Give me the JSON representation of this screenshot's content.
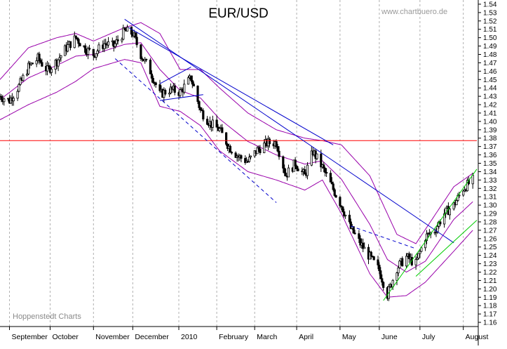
{
  "chart_data": {
    "type": "candlestick",
    "title": "EUR/USD",
    "watermark": "www.chartbuero.de",
    "credit": "Hoppenstedt Charts",
    "x_axis": {
      "start": "2009-08-25",
      "end": "2010-08-12",
      "month_labels": [
        {
          "label": "September",
          "date": "2009-09-01"
        },
        {
          "label": "October",
          "date": "2009-10-01"
        },
        {
          "label": "November",
          "date": "2009-11-02"
        },
        {
          "label": "December",
          "date": "2009-12-01"
        },
        {
          "label": "2010",
          "date": "2010-01-04"
        },
        {
          "label": "February",
          "date": "2010-02-01"
        },
        {
          "label": "March",
          "date": "2010-03-01"
        },
        {
          "label": "April",
          "date": "2010-04-01"
        },
        {
          "label": "May",
          "date": "2010-05-03"
        },
        {
          "label": "June",
          "date": "2010-06-01"
        },
        {
          "label": "July",
          "date": "2010-07-01"
        },
        {
          "label": "August",
          "date": "2010-08-02"
        }
      ]
    },
    "y_axis": {
      "min": 1.155,
      "max": 1.545,
      "ticks": [
        "1.16",
        "1.17",
        "1.18",
        "1.19",
        "1.20",
        "1.21",
        "1.22",
        "1.23",
        "1.24",
        "1.25",
        "1.26",
        "1.27",
        "1.28",
        "1.29",
        "1.30",
        "1.31",
        "1.32",
        "1.33",
        "1.34",
        "1.35",
        "1.36",
        "1.37",
        "1.38",
        "1.39",
        "1.40",
        "1.41",
        "1.42",
        "1.43",
        "1.44",
        "1.45",
        "1.46",
        "1.47",
        "1.48",
        "1.49",
        "1.50",
        "1.51",
        "1.52",
        "1.53",
        "1.54"
      ],
      "position": "right"
    },
    "grid": {
      "vertical": "dashed at month starts",
      "horizontal": false
    },
    "price_path": [
      [
        "2009-08-25",
        1.43
      ],
      [
        "2009-09-01",
        1.425
      ],
      [
        "2009-09-08",
        1.442
      ],
      [
        "2009-09-15",
        1.465
      ],
      [
        "2009-09-22",
        1.475
      ],
      [
        "2009-09-29",
        1.461
      ],
      [
        "2009-10-06",
        1.472
      ],
      [
        "2009-10-13",
        1.488
      ],
      [
        "2009-10-20",
        1.5
      ],
      [
        "2009-10-27",
        1.487
      ],
      [
        "2009-11-02",
        1.48
      ],
      [
        "2009-11-10",
        1.493
      ],
      [
        "2009-11-17",
        1.49
      ],
      [
        "2009-11-25",
        1.508
      ],
      [
        "2009-12-01",
        1.505
      ],
      [
        "2009-12-07",
        1.48
      ],
      [
        "2009-12-14",
        1.46
      ],
      [
        "2009-12-21",
        1.432
      ],
      [
        "2009-12-28",
        1.438
      ],
      [
        "2010-01-05",
        1.435
      ],
      [
        "2010-01-13",
        1.452
      ],
      [
        "2010-01-20",
        1.413
      ],
      [
        "2010-01-27",
        1.398
      ],
      [
        "2010-02-03",
        1.39
      ],
      [
        "2010-02-10",
        1.37
      ],
      [
        "2010-02-17",
        1.358
      ],
      [
        "2010-02-24",
        1.352
      ],
      [
        "2010-03-03",
        1.366
      ],
      [
        "2010-03-10",
        1.374
      ],
      [
        "2010-03-17",
        1.375
      ],
      [
        "2010-03-24",
        1.336
      ],
      [
        "2010-03-31",
        1.35
      ],
      [
        "2010-04-07",
        1.335
      ],
      [
        "2010-04-13",
        1.364
      ],
      [
        "2010-04-20",
        1.345
      ],
      [
        "2010-04-27",
        1.322
      ],
      [
        "2010-05-04",
        1.3
      ],
      [
        "2010-05-11",
        1.272
      ],
      [
        "2010-05-18",
        1.254
      ],
      [
        "2010-05-25",
        1.238
      ],
      [
        "2010-06-01",
        1.222
      ],
      [
        "2010-06-07",
        1.193
      ],
      [
        "2010-06-14",
        1.225
      ],
      [
        "2010-06-21",
        1.238
      ],
      [
        "2010-06-28",
        1.23
      ],
      [
        "2010-07-05",
        1.262
      ],
      [
        "2010-07-12",
        1.27
      ],
      [
        "2010-07-19",
        1.29
      ],
      [
        "2010-07-26",
        1.3
      ],
      [
        "2010-08-02",
        1.32
      ],
      [
        "2010-08-09",
        1.33
      ]
    ],
    "upper_band": [
      [
        "2009-08-25",
        1.45
      ],
      [
        "2009-09-15",
        1.488
      ],
      [
        "2009-10-06",
        1.5
      ],
      [
        "2009-10-20",
        1.505
      ],
      [
        "2009-11-02",
        1.496
      ],
      [
        "2009-11-25",
        1.512
      ],
      [
        "2009-12-07",
        1.518
      ],
      [
        "2009-12-21",
        1.505
      ],
      [
        "2010-01-05",
        1.462
      ],
      [
        "2010-01-20",
        1.462
      ],
      [
        "2010-02-03",
        1.44
      ],
      [
        "2010-02-24",
        1.41
      ],
      [
        "2010-03-17",
        1.39
      ],
      [
        "2010-04-07",
        1.38
      ],
      [
        "2010-04-20",
        1.377
      ],
      [
        "2010-05-04",
        1.372
      ],
      [
        "2010-05-25",
        1.335
      ],
      [
        "2010-06-14",
        1.265
      ],
      [
        "2010-06-28",
        1.254
      ],
      [
        "2010-07-12",
        1.288
      ],
      [
        "2010-07-26",
        1.322
      ],
      [
        "2010-08-09",
        1.338
      ]
    ],
    "lower_band": [
      [
        "2009-08-25",
        1.402
      ],
      [
        "2009-09-15",
        1.42
      ],
      [
        "2009-10-06",
        1.435
      ],
      [
        "2009-10-20",
        1.448
      ],
      [
        "2009-11-02",
        1.463
      ],
      [
        "2009-11-25",
        1.474
      ],
      [
        "2009-12-07",
        1.47
      ],
      [
        "2009-12-21",
        1.418
      ],
      [
        "2010-01-05",
        1.412
      ],
      [
        "2010-01-20",
        1.395
      ],
      [
        "2010-02-03",
        1.365
      ],
      [
        "2010-02-24",
        1.34
      ],
      [
        "2010-03-17",
        1.33
      ],
      [
        "2010-04-07",
        1.318
      ],
      [
        "2010-04-20",
        1.33
      ],
      [
        "2010-05-04",
        1.29
      ],
      [
        "2010-05-25",
        1.218
      ],
      [
        "2010-06-07",
        1.19
      ],
      [
        "2010-06-21",
        1.192
      ],
      [
        "2010-07-05",
        1.208
      ],
      [
        "2010-07-26",
        1.245
      ],
      [
        "2010-08-09",
        1.27
      ]
    ],
    "middle_band": [
      [
        "2009-08-25",
        1.426
      ],
      [
        "2009-09-15",
        1.452
      ],
      [
        "2009-10-06",
        1.467
      ],
      [
        "2009-10-20",
        1.478
      ],
      [
        "2009-11-02",
        1.48
      ],
      [
        "2009-11-25",
        1.492
      ],
      [
        "2009-12-07",
        1.494
      ],
      [
        "2009-12-21",
        1.462
      ],
      [
        "2010-01-05",
        1.437
      ],
      [
        "2010-01-20",
        1.428
      ],
      [
        "2010-02-03",
        1.403
      ],
      [
        "2010-02-24",
        1.376
      ],
      [
        "2010-03-17",
        1.36
      ],
      [
        "2010-04-07",
        1.349
      ],
      [
        "2010-04-20",
        1.353
      ],
      [
        "2010-05-04",
        1.331
      ],
      [
        "2010-05-25",
        1.277
      ],
      [
        "2010-06-07",
        1.235
      ],
      [
        "2010-06-21",
        1.22
      ],
      [
        "2010-07-05",
        1.233
      ],
      [
        "2010-07-26",
        1.283
      ],
      [
        "2010-08-09",
        1.304
      ]
    ],
    "lines": [
      {
        "kind": "horizontal",
        "color": "#ff0000",
        "points": [
          [
            "2009-08-25",
            1.377
          ],
          [
            "2010-08-12",
            1.377
          ]
        ]
      },
      {
        "kind": "trend",
        "color": "#0000cc",
        "points": [
          [
            "2009-11-25",
            1.522
          ],
          [
            "2010-07-26",
            1.255
          ]
        ]
      },
      {
        "kind": "trend",
        "color": "#0000cc",
        "points": [
          [
            "2009-11-28",
            1.512
          ],
          [
            "2010-04-28",
            1.372
          ]
        ]
      },
      {
        "kind": "trend-dashed",
        "color": "#0000cc",
        "points": [
          [
            "2009-11-18",
            1.475
          ],
          [
            "2010-03-17",
            1.303
          ]
        ]
      },
      {
        "kind": "trend",
        "color": "#0000cc",
        "points": [
          [
            "2009-12-21",
            1.445
          ],
          [
            "2010-01-13",
            1.465
          ]
        ]
      },
      {
        "kind": "trend",
        "color": "#0000cc",
        "points": [
          [
            "2009-12-21",
            1.425
          ],
          [
            "2010-01-22",
            1.432
          ]
        ]
      },
      {
        "kind": "trend-dashed",
        "color": "#0000cc",
        "points": [
          [
            "2010-05-11",
            1.275
          ],
          [
            "2010-06-28",
            1.248
          ]
        ]
      },
      {
        "kind": "trend",
        "color": "#00cc00",
        "points": [
          [
            "2010-06-04",
            1.186
          ],
          [
            "2010-08-12",
            1.343
          ]
        ]
      },
      {
        "kind": "trend",
        "color": "#00cc00",
        "points": [
          [
            "2010-06-28",
            1.215
          ],
          [
            "2010-08-12",
            1.282
          ]
        ]
      }
    ]
  }
}
